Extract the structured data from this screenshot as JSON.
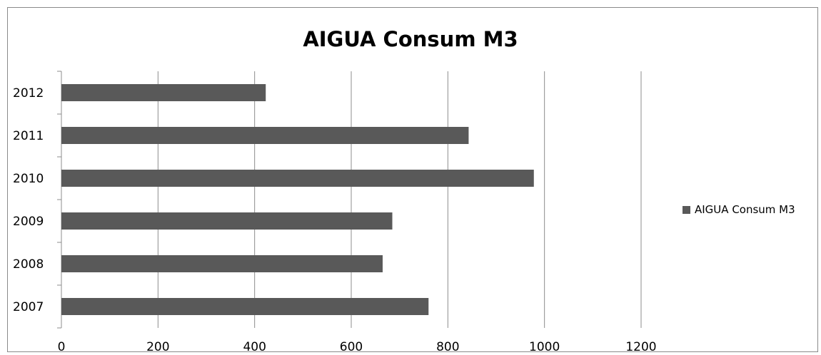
{
  "chart_data": {
    "type": "bar",
    "orientation": "horizontal",
    "title": "AIGUA Consum M3",
    "categories": [
      "2007",
      "2008",
      "2009",
      "2010",
      "2011",
      "2012"
    ],
    "series": [
      {
        "name": "AIGUA Consum M3",
        "values": [
          760,
          665,
          685,
          978,
          843,
          423
        ],
        "color": "#595959"
      }
    ],
    "x_ticks": [
      "0",
      "200",
      "400",
      "600",
      "800",
      "1000",
      "1200"
    ],
    "xlim": [
      0,
      1200
    ],
    "grid": true,
    "legend_position": "right"
  }
}
